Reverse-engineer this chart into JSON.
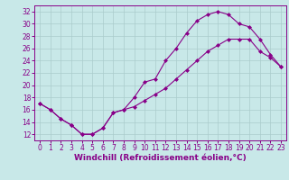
{
  "bg_color": "#c8e8e8",
  "grid_color": "#aacccc",
  "line_color": "#880088",
  "marker_color": "#880088",
  "xlabel": "Windchill (Refroidissement éolien,°C)",
  "xlabel_fontsize": 6.5,
  "tick_fontsize": 5.5,
  "ylim": [
    11,
    33
  ],
  "xlim": [
    -0.5,
    23.5
  ],
  "yticks": [
    12,
    14,
    16,
    18,
    20,
    22,
    24,
    26,
    28,
    30,
    32
  ],
  "xticks": [
    0,
    1,
    2,
    3,
    4,
    5,
    6,
    7,
    8,
    9,
    10,
    11,
    12,
    13,
    14,
    15,
    16,
    17,
    18,
    19,
    20,
    21,
    22,
    23
  ],
  "line1_x": [
    0,
    1,
    2,
    3,
    4,
    5,
    6,
    7,
    8,
    9,
    10,
    11,
    12,
    13,
    14,
    15,
    16,
    17,
    18,
    19,
    20,
    21,
    22,
    23
  ],
  "line1_y": [
    17,
    16,
    14.5,
    13.5,
    12,
    12,
    13,
    15.5,
    16,
    18,
    20.5,
    21,
    24,
    26,
    28.5,
    30.5,
    31.5,
    32,
    31.5,
    30,
    29.5,
    27.5,
    25,
    23
  ],
  "line2_x": [
    0,
    1,
    2,
    3,
    4,
    5,
    6,
    7,
    8,
    9,
    10,
    11,
    12,
    13,
    14,
    15,
    16,
    17,
    18,
    19,
    20,
    21,
    22,
    23
  ],
  "line2_y": [
    17.0,
    16.0,
    14.5,
    13.5,
    12.0,
    12.0,
    13.0,
    15.5,
    16.0,
    16.5,
    17.5,
    18.5,
    19.5,
    21.0,
    22.5,
    24.0,
    25.5,
    26.5,
    27.5,
    27.5,
    27.5,
    25.5,
    24.5,
    23.0
  ]
}
